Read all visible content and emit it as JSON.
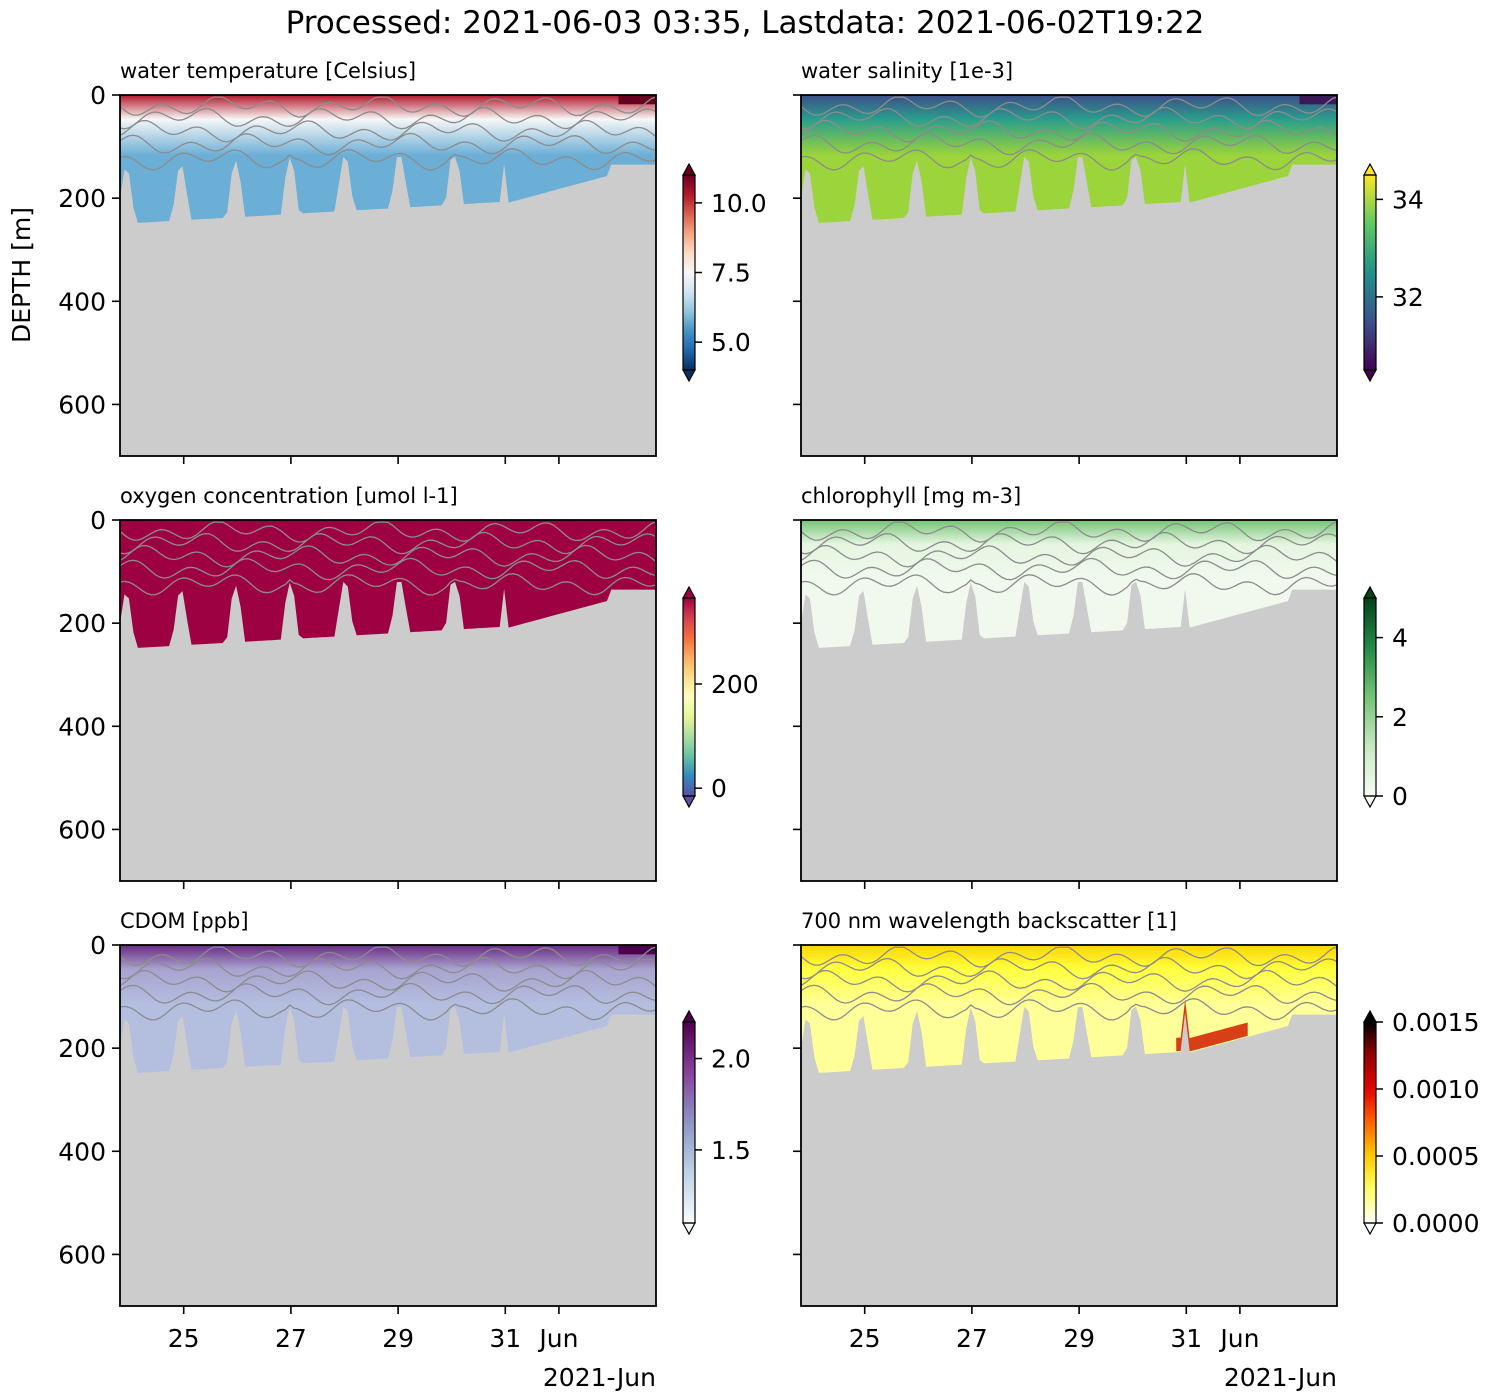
{
  "figure": {
    "suptitle": "Processed: 2021-06-03 03:35, Lastdata: 2021-06-02T19:22",
    "ylabel": "DEPTH [m]",
    "date_offset_label": "2021-Jun",
    "bathymetry_color": "#cccccc",
    "contour_color": "#8c8c8c"
  },
  "chart_data": [
    {
      "type": "heatmap",
      "id": "temp",
      "title": "water temperature [Celsius]",
      "x_ticks": [
        "25",
        "27",
        "29",
        "31",
        "Jun"
      ],
      "y_ticks": [
        "0",
        "200",
        "400",
        "600"
      ],
      "ylim": [
        700,
        0
      ],
      "xlim": [
        "2021-05-23T20:00",
        "2021-06-02T20:00"
      ],
      "colorbar": {
        "ticks": [
          10.0,
          7.5,
          5.0
        ],
        "tick_labels": [
          "10.0",
          "7.5",
          "5.0"
        ],
        "range": [
          4.0,
          11.0
        ],
        "colormap": "RdBu_r"
      }
    },
    {
      "type": "heatmap",
      "id": "salinity",
      "title": "water salinity [1e-3]",
      "x_ticks": [
        "25",
        "27",
        "29",
        "31",
        "Jun"
      ],
      "y_ticks": [
        "0",
        "200",
        "400",
        "600"
      ],
      "ylim": [
        700,
        0
      ],
      "xlim": [
        "2021-05-23T20:00",
        "2021-06-02T20:00"
      ],
      "colorbar": {
        "ticks": [
          34,
          32
        ],
        "tick_labels": [
          "34",
          "32"
        ],
        "range": [
          30.5,
          34.5
        ],
        "colormap": "viridis"
      }
    },
    {
      "type": "heatmap",
      "id": "oxygen",
      "title": "oxygen concentration [umol l-1]",
      "x_ticks": [
        "25",
        "27",
        "29",
        "31",
        "Jun"
      ],
      "y_ticks": [
        "0",
        "200",
        "400",
        "600"
      ],
      "ylim": [
        700,
        0
      ],
      "xlim": [
        "2021-05-23T20:00",
        "2021-06-02T20:00"
      ],
      "colorbar": {
        "ticks": [
          200,
          0
        ],
        "tick_labels": [
          "200",
          "0"
        ],
        "range": [
          -15,
          365
        ],
        "colormap": "Spectral_r"
      }
    },
    {
      "type": "heatmap",
      "id": "chlorophyll",
      "title": "chlorophyll [mg m-3]",
      "x_ticks": [
        "25",
        "27",
        "29",
        "31",
        "Jun"
      ],
      "y_ticks": [
        "0",
        "200",
        "400",
        "600"
      ],
      "ylim": [
        700,
        0
      ],
      "xlim": [
        "2021-05-23T20:00",
        "2021-06-02T20:00"
      ],
      "colorbar": {
        "ticks": [
          4,
          2,
          0
        ],
        "tick_labels": [
          "4",
          "2",
          "0"
        ],
        "range": [
          0,
          5
        ],
        "colormap": "Greens"
      }
    },
    {
      "type": "heatmap",
      "id": "cdom",
      "title": "CDOM [ppb]",
      "x_ticks": [
        "25",
        "27",
        "29",
        "31",
        "Jun"
      ],
      "x_tick_labels_visible": true,
      "y_ticks": [
        "0",
        "200",
        "400",
        "600"
      ],
      "ylim": [
        700,
        0
      ],
      "xlim": [
        "2021-05-23T20:00",
        "2021-06-02T20:00"
      ],
      "colorbar": {
        "ticks": [
          2.0,
          1.5
        ],
        "tick_labels": [
          "2.0",
          "1.5"
        ],
        "range": [
          1.1,
          2.2
        ],
        "colormap": "BuPu"
      }
    },
    {
      "type": "heatmap",
      "id": "backscatter",
      "title": "700 nm wavelength backscatter [1]",
      "x_ticks": [
        "25",
        "27",
        "29",
        "31",
        "Jun"
      ],
      "x_tick_labels_visible": true,
      "y_ticks": [
        "0",
        "200",
        "400",
        "600"
      ],
      "ylim": [
        700,
        0
      ],
      "xlim": [
        "2021-05-23T20:00",
        "2021-06-02T20:00"
      ],
      "colorbar": {
        "ticks": [
          0.0015,
          0.001,
          0.0005,
          0.0
        ],
        "tick_labels": [
          "0.0015",
          "0.0010",
          "0.0005",
          "0.0000"
        ],
        "range": [
          0,
          0.0015
        ],
        "colormap": "hot_r"
      }
    }
  ]
}
